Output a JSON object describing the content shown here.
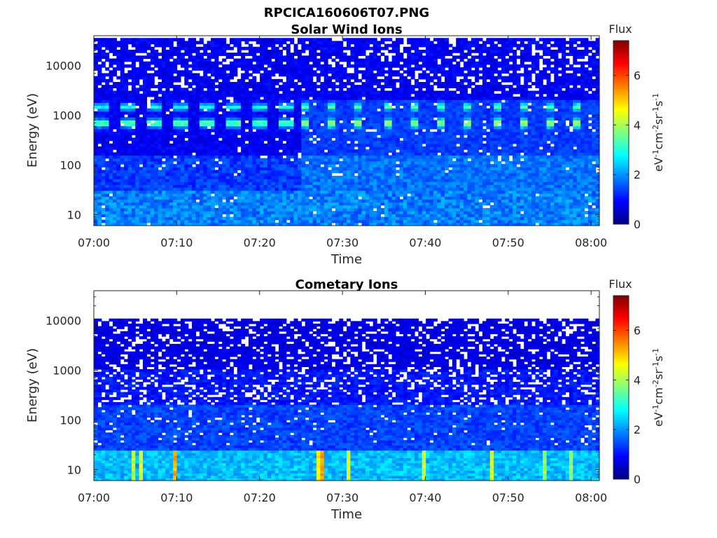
{
  "figure": {
    "title": "RPCICA160606T07.PNG"
  },
  "colors": {
    "colormap": "jet",
    "background": "#ffffff",
    "missing": "#ffffff",
    "axis": "#262626"
  },
  "chart_data": [
    {
      "type": "heatmap",
      "title": "Solar Wind Ions",
      "xlabel": "Time",
      "ylabel": "Energy (eV)",
      "x_ticks": [
        "07:00",
        "07:10",
        "07:20",
        "07:30",
        "07:40",
        "07:50",
        "08:00"
      ],
      "xlim": [
        "07:00",
        "08:01"
      ],
      "y_scale": "log",
      "y_ticks": [
        10,
        100,
        1000,
        10000
      ],
      "ylim": [
        6,
        40000
      ],
      "colorbar": {
        "label": "Flux",
        "unit": "eV-1cm-2sr-1s-1",
        "ticks": [
          0,
          2,
          4,
          6
        ],
        "range": [
          0,
          7.4
        ]
      },
      "features": [
        {
          "desc": "main peak",
          "energy_ev": 700,
          "flux": 3.0,
          "time_range": [
            "07:00",
            "08:01"
          ],
          "note": "continuous blobs before 07:25, periodic every ~3.3 min after"
        },
        {
          "desc": "secondary peak",
          "energy_ev": 1500,
          "flux": 2.5,
          "time_range": [
            "07:00",
            "08:01"
          ]
        },
        {
          "desc": "low-energy band",
          "energy_range_ev": [
            6,
            30
          ],
          "flux": 1.8
        }
      ],
      "background_flux": 0.6,
      "transition_time": "07:25"
    },
    {
      "type": "heatmap",
      "title": "Cometary Ions",
      "xlabel": "Time",
      "ylabel": "Energy (eV)",
      "x_ticks": [
        "07:00",
        "07:10",
        "07:20",
        "07:30",
        "07:40",
        "07:50",
        "08:00"
      ],
      "xlim": [
        "07:00",
        "08:01"
      ],
      "y_scale": "log",
      "y_ticks": [
        10,
        100,
        1000,
        10000
      ],
      "ylim": [
        6,
        40000
      ],
      "max_energy_ev": 11000,
      "colorbar": {
        "label": "Flux",
        "unit": "eV-1cm-2sr-1s-1",
        "ticks": [
          0,
          2,
          4,
          6
        ],
        "range": [
          0,
          7.4
        ]
      },
      "features": [
        {
          "desc": "low-energy band",
          "energy_range_ev": [
            6,
            25
          ],
          "flux": 2.5,
          "note": "vertical bursts up to flux ~4.5"
        },
        {
          "desc": "mid-energy",
          "energy_range_ev": [
            30,
            200
          ],
          "flux": 1.3
        }
      ],
      "background_flux": 0.5
    }
  ]
}
